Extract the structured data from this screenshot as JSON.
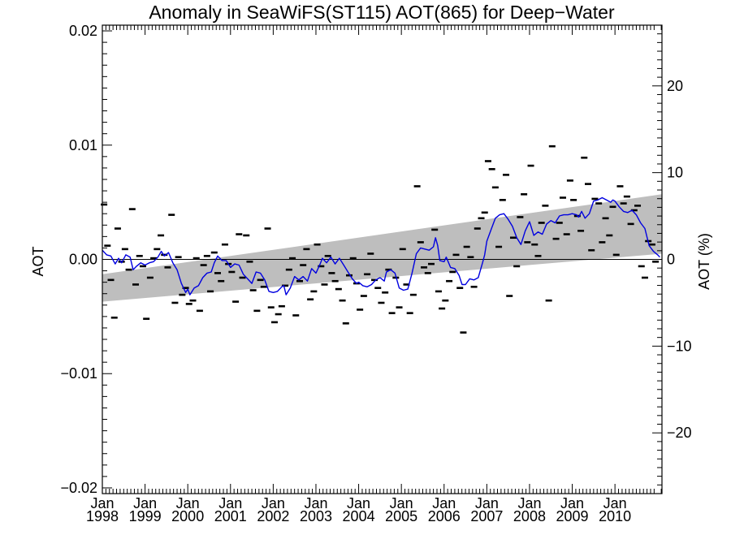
{
  "chart_data": {
    "type": "scatter",
    "title": "Anomaly in SeaWiFS(ST115) AOT(865) for Deep−Water",
    "ylabel": "AOT",
    "ylabel_right": "AOT (%)",
    "xlim": [
      1998.0,
      2011.1
    ],
    "ylim": [
      -0.0205,
      0.0205
    ],
    "ylim_right": [
      -27,
      27
    ],
    "y_ticks": [
      {
        "value": 0.02,
        "label": "0.02"
      },
      {
        "value": 0.01,
        "label": "0.01"
      },
      {
        "value": 0.0,
        "label": "0.00"
      },
      {
        "value": -0.01,
        "label": "−0.01"
      },
      {
        "value": -0.02,
        "label": "−0.02"
      }
    ],
    "y_right_ticks": [
      {
        "value": 20,
        "label": "20"
      },
      {
        "value": 10,
        "label": "10"
      },
      {
        "value": 0,
        "label": "0"
      },
      {
        "value": -10,
        "label": "−10"
      },
      {
        "value": -20,
        "label": "−20"
      }
    ],
    "x_ticks": [
      {
        "value": 1998,
        "month": "Jan",
        "year": "1998"
      },
      {
        "value": 1999,
        "month": "Jan",
        "year": "1999"
      },
      {
        "value": 2000,
        "month": "Jan",
        "year": "2000"
      },
      {
        "value": 2001,
        "month": "Jan",
        "year": "2001"
      },
      {
        "value": 2002,
        "month": "Jan",
        "year": "2002"
      },
      {
        "value": 2003,
        "month": "Jan",
        "year": "2003"
      },
      {
        "value": 2004,
        "month": "Jan",
        "year": "2004"
      },
      {
        "value": 2005,
        "month": "Jan",
        "year": "2005"
      },
      {
        "value": 2006,
        "month": "Jan",
        "year": "2006"
      },
      {
        "value": 2007,
        "month": "Jan",
        "year": "2007"
      },
      {
        "value": 2008,
        "month": "Jan",
        "year": "2008"
      },
      {
        "value": 2009,
        "month": "Jan",
        "year": "2009"
      },
      {
        "value": 2010,
        "month": "Jan",
        "year": "2010"
      }
    ],
    "trend_band": {
      "color": "#bebebe",
      "start": {
        "x": 1998.0,
        "upper": -0.0013,
        "lower": -0.0037
      },
      "end": {
        "x": 2011.1,
        "upper": 0.0057,
        "lower": 0.0005
      }
    },
    "zero_line": 0.0,
    "monthly_points": {
      "color": "#000000",
      "points": [
        [
          1998.04,
          0.0048
        ],
        [
          1998.12,
          0.0012
        ],
        [
          1998.2,
          -0.0018
        ],
        [
          1998.28,
          -0.0051
        ],
        [
          1998.36,
          0.0027
        ],
        [
          1998.45,
          -0.0002
        ],
        [
          1998.53,
          0.0009
        ],
        [
          1998.62,
          -0.0009
        ],
        [
          1998.7,
          0.0044
        ],
        [
          1998.78,
          -0.0022
        ],
        [
          1998.87,
          0.0003
        ],
        [
          1998.95,
          -0.0006
        ],
        [
          1999.03,
          -0.0052
        ],
        [
          1999.12,
          -0.0016
        ],
        [
          1999.2,
          0.0001
        ],
        [
          1999.28,
          0.0009
        ],
        [
          1999.37,
          0.0021
        ],
        [
          1999.45,
          0.0004
        ],
        [
          1999.53,
          -0.0007
        ],
        [
          1999.62,
          0.0039
        ],
        [
          1999.7,
          -0.0038
        ],
        [
          1999.78,
          0.0002
        ],
        [
          1999.87,
          -0.0031
        ],
        [
          1999.95,
          -0.0025
        ],
        [
          2000.03,
          -0.0039
        ],
        [
          2000.12,
          -0.0036
        ],
        [
          2000.2,
          0.0001
        ],
        [
          2000.28,
          -0.0045
        ],
        [
          2000.37,
          -0.0005
        ],
        [
          2000.45,
          0.0003
        ],
        [
          2000.53,
          -0.0028
        ],
        [
          2000.62,
          0.0006
        ],
        [
          2000.7,
          -0.0012
        ],
        [
          2000.78,
          -0.0019
        ],
        [
          2000.87,
          0.0013
        ],
        [
          2000.95,
          -0.0004
        ],
        [
          2001.03,
          -0.0011
        ],
        [
          2001.12,
          -0.0037
        ],
        [
          2001.2,
          0.0022
        ],
        [
          2001.28,
          -0.0016
        ],
        [
          2001.37,
          0.0021
        ],
        [
          2001.45,
          -0.0002
        ],
        [
          2001.53,
          -0.0027
        ],
        [
          2001.62,
          -0.0045
        ],
        [
          2001.7,
          -0.0018
        ],
        [
          2001.78,
          -0.0024
        ],
        [
          2001.87,
          0.0027
        ],
        [
          2001.95,
          -0.0042
        ],
        [
          2002.03,
          -0.0055
        ],
        [
          2002.12,
          -0.0048
        ],
        [
          2002.2,
          -0.0041
        ],
        [
          2002.28,
          -0.0023
        ],
        [
          2002.37,
          -0.0009
        ],
        [
          2002.45,
          0.0001
        ],
        [
          2002.53,
          -0.0049
        ],
        [
          2002.62,
          -0.0019
        ],
        [
          2002.7,
          -0.0005
        ],
        [
          2002.78,
          0.0009
        ],
        [
          2002.87,
          -0.0035
        ],
        [
          2002.95,
          -0.0028
        ],
        [
          2003.03,
          0.0013
        ],
        [
          2003.12,
          -0.0006
        ],
        [
          2003.2,
          -0.0022
        ],
        [
          2003.28,
          0.0003
        ],
        [
          2003.37,
          -0.0012
        ],
        [
          2003.45,
          -0.0019
        ],
        [
          2003.53,
          -0.0026
        ],
        [
          2003.62,
          -0.0036
        ],
        [
          2003.7,
          -0.0056
        ],
        [
          2003.78,
          -0.0014
        ],
        [
          2003.87,
          0.0001
        ],
        [
          2003.95,
          -0.0021
        ],
        [
          2004.03,
          -0.0044
        ],
        [
          2004.12,
          -0.0032
        ],
        [
          2004.2,
          -0.0013
        ],
        [
          2004.28,
          0.0005
        ],
        [
          2004.37,
          -0.0018
        ],
        [
          2004.45,
          -0.0025
        ],
        [
          2004.53,
          -0.0038
        ],
        [
          2004.62,
          -0.0029
        ],
        [
          2004.7,
          -0.0009
        ],
        [
          2004.78,
          -0.0047
        ],
        [
          2004.87,
          -0.0016
        ],
        [
          2004.95,
          -0.0042
        ],
        [
          2005.03,
          0.0009
        ],
        [
          2005.12,
          -0.0022
        ],
        [
          2005.2,
          -0.0047
        ],
        [
          2005.28,
          -0.0031
        ],
        [
          2005.37,
          0.0064
        ],
        [
          2005.45,
          0.0015
        ],
        [
          2005.53,
          -0.0007
        ],
        [
          2005.62,
          -0.0012
        ],
        [
          2005.7,
          -0.0004
        ],
        [
          2005.78,
          0.0026
        ],
        [
          2005.87,
          -0.0028
        ],
        [
          2005.95,
          -0.0043
        ],
        [
          2006.03,
          -0.0036
        ],
        [
          2006.12,
          -0.0019
        ],
        [
          2006.2,
          -0.0011
        ],
        [
          2006.28,
          0.0004
        ],
        [
          2006.37,
          -0.0025
        ],
        [
          2006.45,
          -0.0064
        ],
        [
          2006.53,
          0.0011
        ],
        [
          2006.62,
          0.0002
        ],
        [
          2006.7,
          -0.0024
        ],
        [
          2006.78,
          0.0027
        ],
        [
          2006.87,
          0.0036
        ],
        [
          2006.95,
          0.0041
        ],
        [
          2007.03,
          0.0086
        ],
        [
          2007.12,
          0.0079
        ],
        [
          2007.2,
          0.0063
        ],
        [
          2007.28,
          0.0011
        ],
        [
          2007.37,
          0.0052
        ],
        [
          2007.45,
          0.0074
        ],
        [
          2007.53,
          -0.0032
        ],
        [
          2007.62,
          0.0019
        ],
        [
          2007.7,
          -0.0006
        ],
        [
          2007.78,
          0.0037
        ],
        [
          2007.87,
          0.0057
        ],
        [
          2007.95,
          0.0015
        ],
        [
          2008.03,
          0.0082
        ],
        [
          2008.12,
          0.0013
        ],
        [
          2008.2,
          0.0003
        ],
        [
          2008.28,
          0.0032
        ],
        [
          2008.37,
          0.0047
        ],
        [
          2008.45,
          -0.0036
        ],
        [
          2008.53,
          0.0099
        ],
        [
          2008.62,
          0.0018
        ],
        [
          2008.7,
          0.0032
        ],
        [
          2008.78,
          0.0054
        ],
        [
          2008.87,
          0.0022
        ],
        [
          2008.95,
          0.0069
        ],
        [
          2009.03,
          0.0052
        ],
        [
          2009.12,
          0.0038
        ],
        [
          2009.2,
          0.0025
        ],
        [
          2009.28,
          0.0089
        ],
        [
          2009.37,
          0.0066
        ],
        [
          2009.45,
          0.0008
        ],
        [
          2009.53,
          0.0053
        ],
        [
          2009.62,
          0.0049
        ],
        [
          2009.7,
          0.0015
        ],
        [
          2009.78,
          0.0036
        ],
        [
          2009.87,
          0.0021
        ],
        [
          2009.95,
          0.0046
        ],
        [
          2010.03,
          0.0004
        ],
        [
          2010.12,
          0.0064
        ],
        [
          2010.2,
          0.0049
        ],
        [
          2010.28,
          0.0055
        ],
        [
          2010.37,
          0.0031
        ],
        [
          2010.45,
          0.0043
        ],
        [
          2010.53,
          0.0047
        ],
        [
          2010.62,
          -0.0006
        ],
        [
          2010.7,
          -0.0016
        ],
        [
          2010.78,
          0.0016
        ],
        [
          2010.87,
          0.0013
        ],
        [
          2010.95,
          -0.0002
        ]
      ]
    },
    "smoothed_series": {
      "color": "#0000e0",
      "points": [
        [
          1998.0,
          0.0008
        ],
        [
          1998.1,
          0.0004
        ],
        [
          1998.2,
          0.0003
        ],
        [
          1998.3,
          -0.0004
        ],
        [
          1998.38,
          0.0001
        ],
        [
          1998.45,
          -0.0003
        ],
        [
          1998.55,
          0.0004
        ],
        [
          1998.65,
          0.0002
        ],
        [
          1998.72,
          -0.0009
        ],
        [
          1998.8,
          -0.0006
        ],
        [
          1998.9,
          -0.0003
        ],
        [
          1999.0,
          -0.0005
        ],
        [
          1999.1,
          -0.0003
        ],
        [
          1999.2,
          -0.0002
        ],
        [
          1999.3,
          0.0002
        ],
        [
          1999.38,
          0.0007
        ],
        [
          1999.45,
          0.0003
        ],
        [
          1999.55,
          0.0006
        ],
        [
          1999.65,
          -0.0003
        ],
        [
          1999.75,
          -0.0009
        ],
        [
          1999.85,
          -0.0021
        ],
        [
          1999.95,
          -0.0029
        ],
        [
          2000.0,
          -0.0026
        ],
        [
          2000.05,
          -0.0031
        ],
        [
          2000.15,
          -0.0025
        ],
        [
          2000.25,
          -0.0023
        ],
        [
          2000.35,
          -0.0016
        ],
        [
          2000.45,
          -0.0012
        ],
        [
          2000.55,
          -0.0011
        ],
        [
          2000.62,
          -0.0003
        ],
        [
          2000.7,
          0.0003
        ],
        [
          2000.8,
          -0.0001
        ],
        [
          2000.9,
          -0.0001
        ],
        [
          2001.0,
          -0.0007
        ],
        [
          2001.1,
          -0.0004
        ],
        [
          2001.2,
          -0.0005
        ],
        [
          2001.3,
          -0.0013
        ],
        [
          2001.4,
          -0.0017
        ],
        [
          2001.5,
          -0.0021
        ],
        [
          2001.6,
          -0.0011
        ],
        [
          2001.7,
          -0.0012
        ],
        [
          2001.8,
          -0.0018
        ],
        [
          2001.9,
          -0.0028
        ],
        [
          2002.0,
          -0.0029
        ],
        [
          2002.1,
          -0.0028
        ],
        [
          2002.2,
          -0.0024
        ],
        [
          2002.25,
          -0.0023
        ],
        [
          2002.3,
          -0.0031
        ],
        [
          2002.4,
          -0.0025
        ],
        [
          2002.5,
          -0.0015
        ],
        [
          2002.6,
          -0.0018
        ],
        [
          2002.7,
          -0.0015
        ],
        [
          2002.8,
          -0.0019
        ],
        [
          2002.9,
          -0.0008
        ],
        [
          2003.0,
          -0.0012
        ],
        [
          2003.1,
          -0.0004
        ],
        [
          2003.15,
          0.0001
        ],
        [
          2003.25,
          -0.0003
        ],
        [
          2003.35,
          0.0002
        ],
        [
          2003.45,
          -0.0004
        ],
        [
          2003.55,
          0.0001
        ],
        [
          2003.65,
          -0.0005
        ],
        [
          2003.75,
          -0.0011
        ],
        [
          2003.85,
          -0.0017
        ],
        [
          2003.95,
          -0.0021
        ],
        [
          2004.0,
          -0.002
        ],
        [
          2004.1,
          -0.0023
        ],
        [
          2004.2,
          -0.0024
        ],
        [
          2004.3,
          -0.0022
        ],
        [
          2004.4,
          -0.0018
        ],
        [
          2004.5,
          -0.0016
        ],
        [
          2004.6,
          -0.0019
        ],
        [
          2004.65,
          -0.0011
        ],
        [
          2004.75,
          -0.0009
        ],
        [
          2004.85,
          -0.0012
        ],
        [
          2004.95,
          -0.0025
        ],
        [
          2005.05,
          -0.0027
        ],
        [
          2005.15,
          -0.0026
        ],
        [
          2005.25,
          -0.0012
        ],
        [
          2005.35,
          0.0005
        ],
        [
          2005.45,
          0.001
        ],
        [
          2005.55,
          0.0009
        ],
        [
          2005.65,
          0.0008
        ],
        [
          2005.75,
          0.0011
        ],
        [
          2005.8,
          0.0019
        ],
        [
          2005.85,
          0.0012
        ],
        [
          2005.9,
          -0.0001
        ],
        [
          2006.0,
          -0.0002
        ],
        [
          2006.05,
          0.0002
        ],
        [
          2006.15,
          -0.0007
        ],
        [
          2006.25,
          -0.0008
        ],
        [
          2006.35,
          -0.0014
        ],
        [
          2006.42,
          -0.0022
        ],
        [
          2006.5,
          -0.0022
        ],
        [
          2006.6,
          -0.0017
        ],
        [
          2006.7,
          -0.0018
        ],
        [
          2006.8,
          -0.0016
        ],
        [
          2006.9,
          -0.0003
        ],
        [
          2006.95,
          0.0004
        ],
        [
          2007.0,
          0.0016
        ],
        [
          2007.1,
          0.0026
        ],
        [
          2007.2,
          0.0036
        ],
        [
          2007.3,
          0.0039
        ],
        [
          2007.4,
          0.004
        ],
        [
          2007.5,
          0.0035
        ],
        [
          2007.6,
          0.0029
        ],
        [
          2007.7,
          0.0019
        ],
        [
          2007.8,
          0.0013
        ],
        [
          2007.9,
          0.0025
        ],
        [
          2008.0,
          0.0033
        ],
        [
          2008.05,
          0.0027
        ],
        [
          2008.1,
          0.0021
        ],
        [
          2008.2,
          0.0024
        ],
        [
          2008.3,
          0.0022
        ],
        [
          2008.4,
          0.0031
        ],
        [
          2008.5,
          0.0034
        ],
        [
          2008.6,
          0.0032
        ],
        [
          2008.7,
          0.0038
        ],
        [
          2008.8,
          0.0039
        ],
        [
          2008.9,
          0.0039
        ],
        [
          2009.0,
          0.004
        ],
        [
          2009.1,
          0.0039
        ],
        [
          2009.15,
          0.0037
        ],
        [
          2009.22,
          0.0042
        ],
        [
          2009.3,
          0.0036
        ],
        [
          2009.4,
          0.004
        ],
        [
          2009.5,
          0.0051
        ],
        [
          2009.6,
          0.0052
        ],
        [
          2009.7,
          0.0054
        ],
        [
          2009.8,
          0.0052
        ],
        [
          2009.9,
          0.005
        ],
        [
          2009.95,
          0.0052
        ],
        [
          2010.0,
          0.0051
        ],
        [
          2010.1,
          0.0046
        ],
        [
          2010.2,
          0.0042
        ],
        [
          2010.3,
          0.0041
        ],
        [
          2010.4,
          0.0043
        ],
        [
          2010.5,
          0.0039
        ],
        [
          2010.6,
          0.0032
        ],
        [
          2010.7,
          0.0027
        ],
        [
          2010.8,
          0.0012
        ],
        [
          2010.9,
          0.0007
        ],
        [
          2011.0,
          0.0004
        ],
        [
          2011.05,
          0.0002
        ]
      ]
    }
  }
}
